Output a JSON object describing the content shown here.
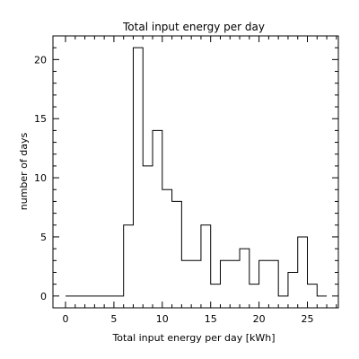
{
  "chart_data": {
    "type": "bar",
    "style": "step-histogram",
    "title": "Total input energy per day",
    "xlabel": "Total input energy per day [kWh]",
    "ylabel": "number of days",
    "xlim": [
      -1.3,
      28.2
    ],
    "ylim": [
      -1.0,
      22.0
    ],
    "x_ticks_major": [
      0,
      5,
      10,
      15,
      20,
      25
    ],
    "x_ticks_minor": [
      1,
      2,
      3,
      4,
      6,
      7,
      8,
      9,
      11,
      12,
      13,
      14,
      16,
      17,
      18,
      19,
      21,
      22,
      23,
      24,
      26,
      27,
      28
    ],
    "y_ticks_major": [
      0,
      5,
      10,
      15,
      20
    ],
    "y_ticks_minor": [
      1,
      2,
      3,
      4,
      6,
      7,
      8,
      9,
      11,
      12,
      13,
      14,
      16,
      17,
      18,
      19,
      21,
      22
    ],
    "bin_edges": [
      0,
      1,
      2,
      3,
      4,
      5,
      6,
      7,
      8,
      9,
      10,
      11,
      12,
      13,
      14,
      15,
      16,
      17,
      18,
      19,
      20,
      21,
      22,
      23,
      24,
      25,
      26,
      27
    ],
    "values": [
      0,
      0,
      0,
      0,
      0,
      0,
      6,
      21,
      11,
      14,
      9,
      8,
      3,
      3,
      6,
      1,
      3,
      3,
      4,
      1,
      3,
      3,
      0,
      2,
      5,
      1,
      0
    ],
    "grid": false,
    "legend": "none",
    "color": "#000000"
  }
}
